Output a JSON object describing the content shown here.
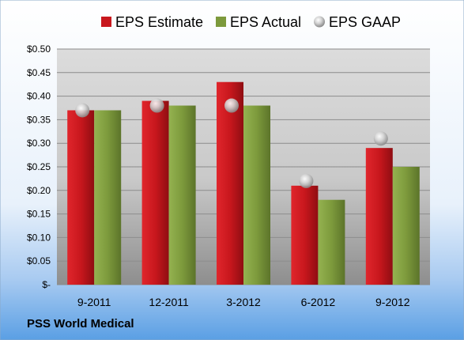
{
  "chart_data": {
    "type": "bar",
    "title": "",
    "xlabel": "",
    "ylabel": "",
    "categories": [
      "9-2011",
      "12-2011",
      "3-2012",
      "6-2012",
      "9-2012"
    ],
    "series": [
      {
        "name": "EPS Estimate",
        "type": "bar",
        "color": "#c8171d",
        "values": [
          0.37,
          0.39,
          0.43,
          0.21,
          0.29
        ]
      },
      {
        "name": "EPS Actual",
        "type": "bar",
        "color": "#7d9a3c",
        "values": [
          0.37,
          0.38,
          0.38,
          0.18,
          0.25
        ]
      },
      {
        "name": "EPS GAAP",
        "type": "marker",
        "color": "#b8b8b8",
        "values": [
          0.37,
          0.38,
          0.38,
          0.22,
          0.31
        ]
      }
    ],
    "ylim": [
      0,
      0.5
    ],
    "yticks": [
      0,
      0.05,
      0.1,
      0.15,
      0.2,
      0.25,
      0.3,
      0.35,
      0.4,
      0.45,
      0.5
    ],
    "ytick_labels": [
      "$-",
      "$0.05",
      "$0.10",
      "$0.15",
      "$0.20",
      "$0.25",
      "$0.30",
      "$0.35",
      "$0.40",
      "$0.45",
      "$0.50"
    ],
    "grid": true,
    "legend_position": "top"
  },
  "footer": {
    "company": "PSS World Medical"
  },
  "colors": {
    "background_top": "#ffffff",
    "background_bottom": "#5a9fe4",
    "plot_top": "#dcdcdc",
    "plot_bottom": "#8e8e8e"
  }
}
